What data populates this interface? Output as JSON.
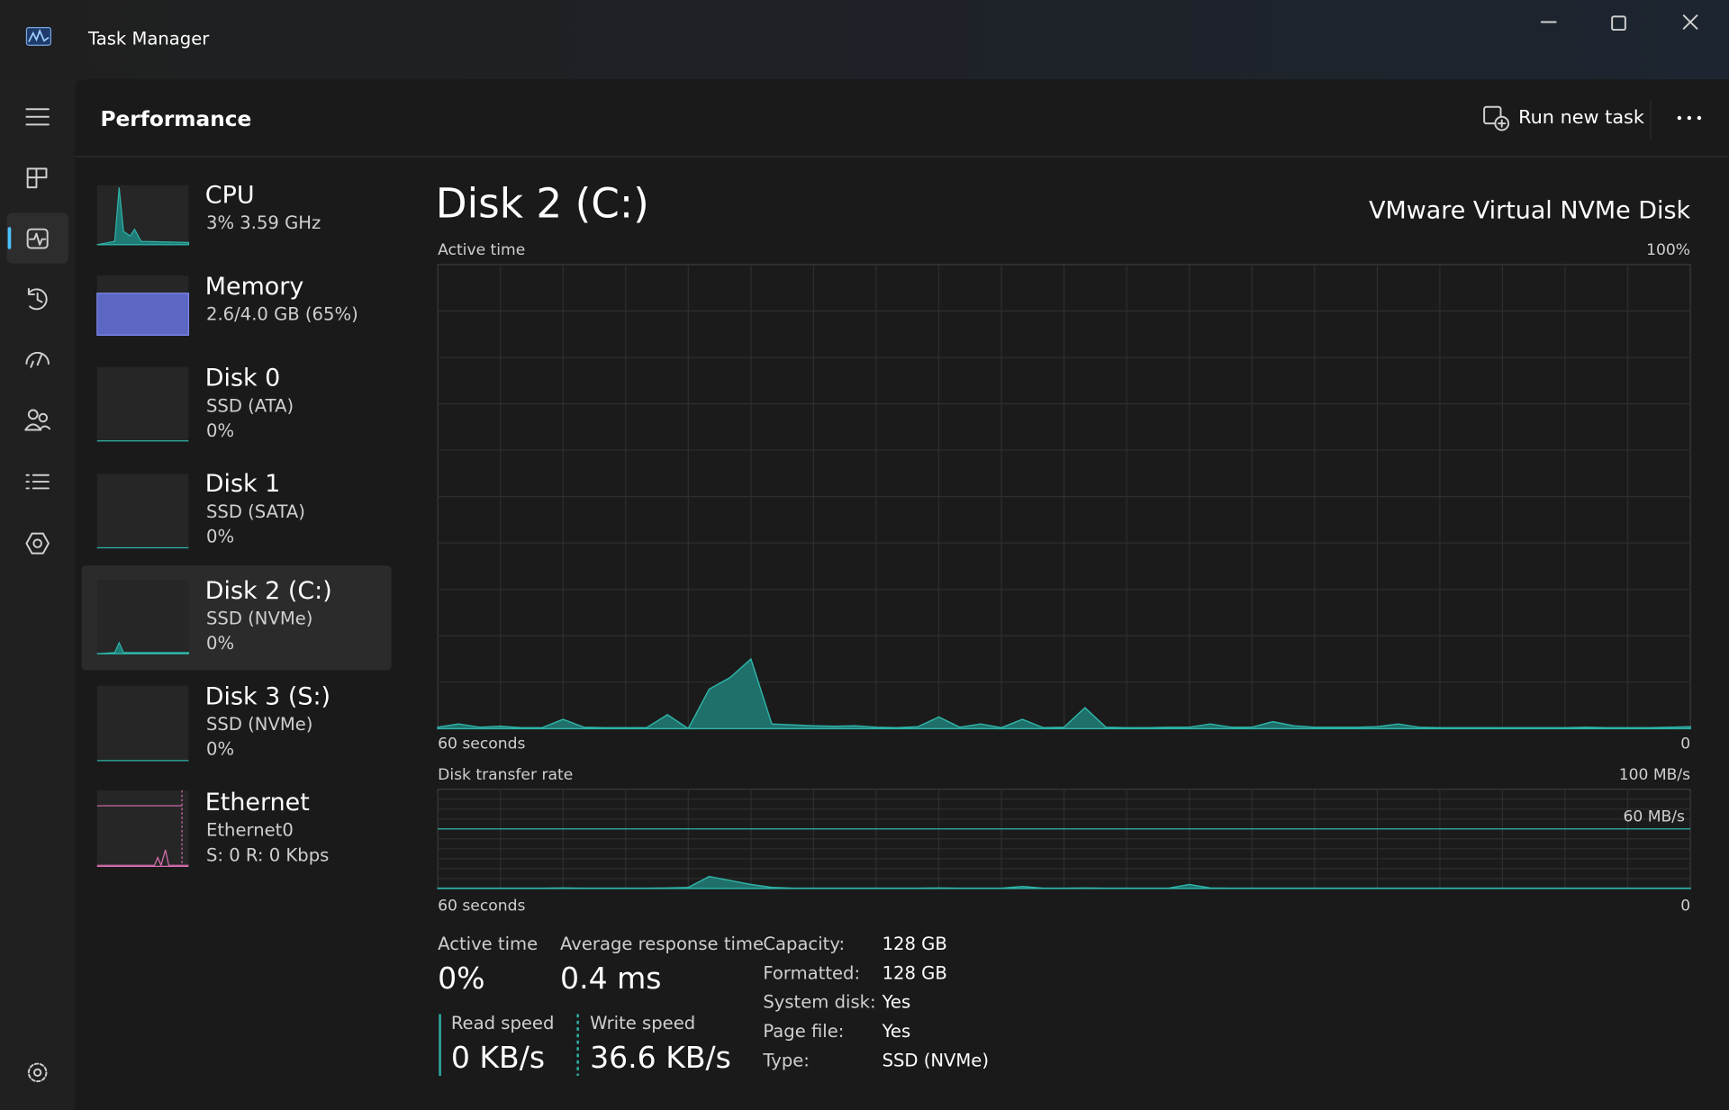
{
  "window": {
    "title": "Task Manager"
  },
  "header": {
    "title": "Performance",
    "run_new_task": "Run new task"
  },
  "sidebar": {
    "selected": 4,
    "items": [
      {
        "name": "CPU",
        "lines": [
          "3%  3.59 GHz"
        ]
      },
      {
        "name": "Memory",
        "lines": [
          "2.6/4.0 GB (65%)"
        ]
      },
      {
        "name": "Disk 0",
        "lines": [
          "SSD (ATA)",
          "0%"
        ]
      },
      {
        "name": "Disk 1",
        "lines": [
          "SSD (SATA)",
          "0%"
        ]
      },
      {
        "name": "Disk 2 (C:)",
        "lines": [
          "SSD (NVMe)",
          "0%"
        ]
      },
      {
        "name": "Disk 3 (S:)",
        "lines": [
          "SSD (NVMe)",
          "0%"
        ]
      },
      {
        "name": "Ethernet",
        "lines": [
          "Ethernet0",
          "S: 0 R: 0 Kbps"
        ]
      }
    ]
  },
  "panel": {
    "title": "Disk 2 (C:)",
    "model": "VMware Virtual NVMe Disk",
    "active_time_graph": {
      "label": "Active time",
      "max": {
        "value": 100,
        "label": "100%"
      },
      "time_start": "60 seconds",
      "time_end": "0",
      "values": [
        0.3,
        1,
        0.3,
        0.5,
        0.2,
        0.2,
        2,
        0.3,
        0.2,
        0.2,
        0.2,
        3,
        0,
        8.5,
        11,
        15,
        1,
        0.8,
        0.6,
        0.5,
        0.6,
        0.3,
        0.2,
        0.4,
        2.5,
        0.3,
        1,
        0.2,
        2,
        0.2,
        0.3,
        4.5,
        0.3,
        0.2,
        0.2,
        0.3,
        0.3,
        1,
        0.3,
        0.3,
        1.5,
        0.6,
        0.3,
        0.3,
        0.3,
        0.4,
        1,
        0.3,
        0.2,
        0.2,
        0.2,
        0.2,
        0.2,
        0.2,
        0.2,
        0.3,
        0.2,
        0.2,
        0.2,
        0.3,
        0.4
      ]
    },
    "transfer_graph": {
      "label": "Disk transfer rate",
      "max": {
        "value": 100,
        "label": "100 MB/s"
      },
      "reference": {
        "value": 60,
        "label": "60 MB/s"
      },
      "time_start": "60 seconds",
      "time_end": "0",
      "values": [
        0.3,
        0.3,
        0.3,
        0.3,
        0.3,
        0.3,
        0.5,
        0.3,
        0.3,
        0.3,
        0.3,
        0.5,
        1,
        12,
        8,
        4,
        1,
        0.3,
        0.3,
        0.3,
        0.3,
        0.3,
        0.3,
        0.3,
        0.5,
        0.3,
        0.3,
        0.3,
        2,
        0.3,
        0.3,
        0.5,
        0.3,
        0.3,
        0.3,
        0.3,
        4,
        0.5,
        0.3,
        0.3,
        0.3,
        0.3,
        0.3,
        0.3,
        0.3,
        0.3,
        0.3,
        0.3,
        0.3,
        0.3,
        0.3,
        0.3,
        0.3,
        0.3,
        0.3,
        0.3,
        0.3,
        0.3,
        0.3,
        0.3,
        0.3
      ]
    },
    "stats": [
      {
        "label": "Active time",
        "value": "0%"
      },
      {
        "label": "Average response time",
        "value": "0.4 ms"
      }
    ],
    "speeds": [
      {
        "label": "Read speed",
        "value": "0 KB/s"
      },
      {
        "label": "Write speed",
        "value": "36.6 KB/s"
      }
    ],
    "properties": [
      {
        "label": "Capacity:",
        "value": "128 GB"
      },
      {
        "label": "Formatted:",
        "value": "128 GB"
      },
      {
        "label": "System disk:",
        "value": "Yes"
      },
      {
        "label": "Page file:",
        "value": "Yes"
      },
      {
        "label": "Type:",
        "value": "SSD (NVMe)"
      }
    ]
  }
}
